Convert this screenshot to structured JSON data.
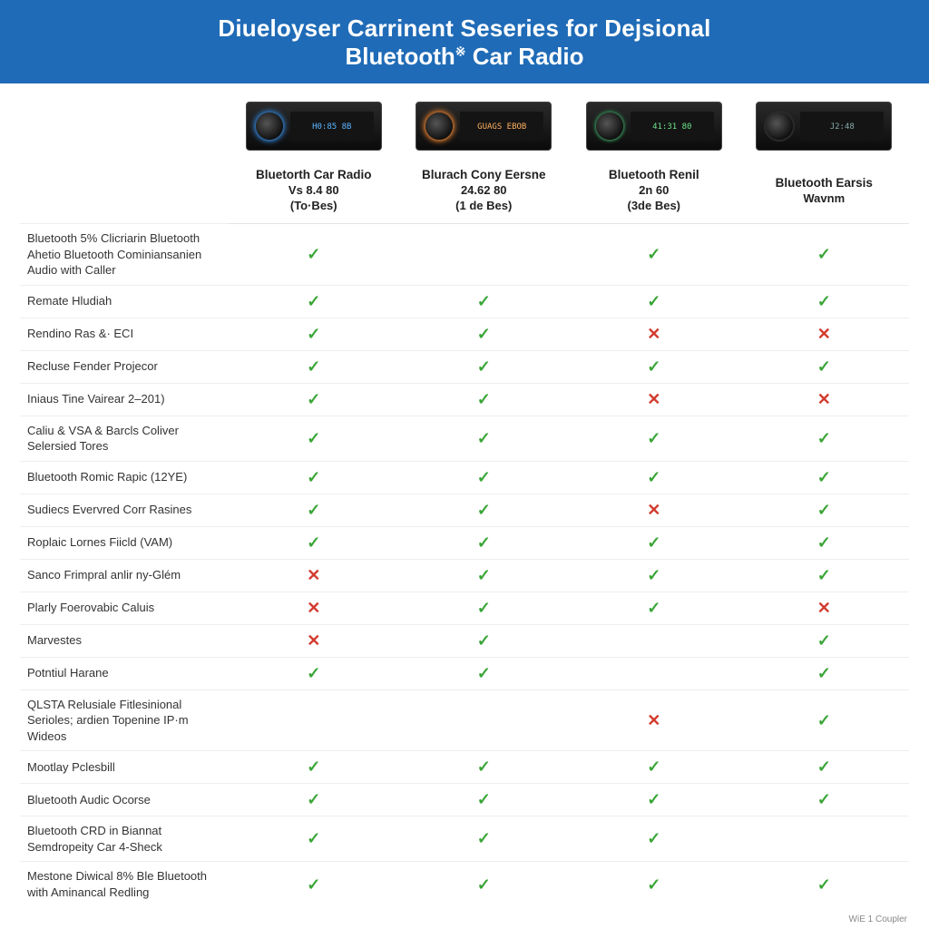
{
  "colors": {
    "header_bg": "#1f6bb7",
    "check_green": "#3aa537",
    "cross_red": "#d23b2e",
    "row_border": "#eeeeee"
  },
  "header": {
    "line1": "Diueloyser Carrinent Seseries for Dejsional",
    "line2_pre": "Bluetooth",
    "line2_sup": "※",
    "line2_post": " Car Radio"
  },
  "footer": "WiE 1 Coupler",
  "products": [
    {
      "name": "Bluetorth Car Radio",
      "sub1": "Vs 8.4 80",
      "sub2": "(To·Bes)",
      "dial": "blue",
      "display": "H0:85 8B"
    },
    {
      "name": "Blurach Cony Eersne",
      "sub1": "24.62 80",
      "sub2": "(1 de Bes)",
      "dial": "orange",
      "display": "GUAGS EBOB"
    },
    {
      "name": "Bluetooth Renil",
      "sub1": "2n 60",
      "sub2": "(3de Bes)",
      "dial": "green",
      "display": "41:31 80"
    },
    {
      "name": "Bluetooth Earsis",
      "sub1": "Wavnm",
      "sub2": "",
      "dial": "plain",
      "display": "J2:48"
    }
  ],
  "features": [
    {
      "label": "Bluetooth 5% Clicriarin Bluetooth Ahetio Bluetooth Cominiansanien Audio with Caller",
      "cells": [
        "y",
        "",
        "y",
        "y"
      ]
    },
    {
      "label": "Remate Hludiah",
      "cells": [
        "y",
        "y",
        "y",
        "y"
      ]
    },
    {
      "label": "Rendino Ras &· ECI",
      "cells": [
        "y",
        "y",
        "n",
        "n"
      ]
    },
    {
      "label": "Recluse Fender Projecor",
      "cells": [
        "y",
        "y",
        "y",
        "y"
      ]
    },
    {
      "label": "Iniaus Tine Vairear 2–201)",
      "cells": [
        "y",
        "y",
        "n",
        "n"
      ]
    },
    {
      "label": "Caliu & VSA & Barcls Coliver Selersied Tores",
      "cells": [
        "y",
        "y",
        "y",
        "y"
      ]
    },
    {
      "label": "Bluetooth Romic Rapic (12YE)",
      "cells": [
        "y",
        "y",
        "y",
        "y"
      ]
    },
    {
      "label": "Sudiecs Evervred Corr Rasines",
      "cells": [
        "y",
        "y",
        "n",
        "y"
      ]
    },
    {
      "label": "Roplaic Lornes Fiicld (VAM)",
      "cells": [
        "y",
        "y",
        "y",
        "y"
      ]
    },
    {
      "label": "Sanco Frimpral anlir ny-Glém",
      "cells": [
        "n",
        "y",
        "y",
        "y"
      ]
    },
    {
      "label": "Plarly Foerovabic Caluis",
      "cells": [
        "n",
        "y",
        "y",
        "n"
      ]
    },
    {
      "label": "Marvestes",
      "cells": [
        "n",
        "y",
        "",
        "y"
      ]
    },
    {
      "label": "Potntiul Harane",
      "cells": [
        "y",
        "y",
        "",
        "y"
      ]
    },
    {
      "label": "QLSTA Relusiale Fitlesinional Serioles; ardien Topenine IP·m Wideos",
      "cells": [
        "",
        "",
        "n",
        "y"
      ]
    },
    {
      "label": "Mootlay Pclesbill",
      "cells": [
        "y",
        "y",
        "y",
        "y"
      ]
    },
    {
      "label": "Bluetooth Audic Ocorse",
      "cells": [
        "y",
        "y",
        "y",
        "y"
      ]
    },
    {
      "label": "Bluetooth CRD in Biannat Semdropeity Car 4-Sheck",
      "cells": [
        "y",
        "y",
        "y",
        ""
      ]
    },
    {
      "label": "Mestone Diwical 8% Ble Bluetooth with Aminancal Redling",
      "cells": [
        "y",
        "y",
        "y",
        "y"
      ]
    }
  ]
}
